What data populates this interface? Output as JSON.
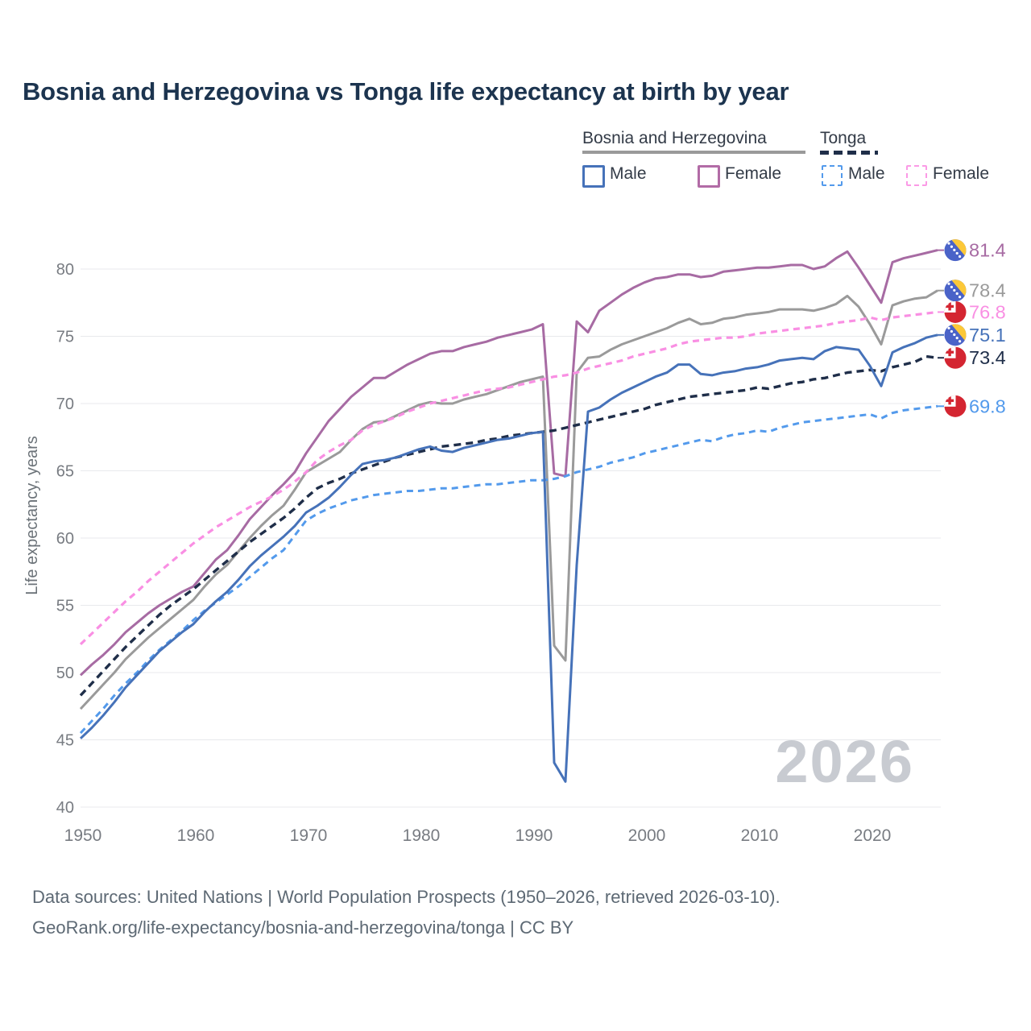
{
  "title": "Bosnia and Herzegovina vs Tonga life expectancy at birth by year",
  "watermark": "2026",
  "footer": {
    "line1": "Data sources: United Nations | World Population Prospects (1950–2026, retrieved 2026-03-10).",
    "line2": "GeoRank.org/life-expectancy/bosnia-and-herzegovina/tonga | CC BY"
  },
  "legend": {
    "groups": [
      {
        "label": "Bosnia and Herzegovina",
        "line_style": "solid",
        "line_color": "#9a9a9a",
        "items": [
          {
            "label": "Male",
            "color": "#4672b9"
          },
          {
            "label": "Female",
            "color": "#b26ba6"
          }
        ]
      },
      {
        "label": "Tonga",
        "line_style": "dashed",
        "line_color": "#1f2e49",
        "items": [
          {
            "label": "Male",
            "color": "#539aec"
          },
          {
            "label": "Female",
            "color": "#fb9ae6"
          }
        ]
      }
    ]
  },
  "chart_data": {
    "type": "line",
    "title": "Bosnia and Herzegovina vs Tonga life expectancy at birth by year",
    "xlabel": "",
    "ylabel": "Life expectancy, years",
    "x_start": 1950,
    "x_step": 1,
    "x_end": 2026,
    "xlim": [
      1950,
      2026
    ],
    "ylim": [
      40,
      82
    ],
    "x_ticks": [
      1950,
      1960,
      1970,
      1980,
      1990,
      2000,
      2010,
      2020
    ],
    "y_ticks": [
      40,
      45,
      50,
      55,
      60,
      65,
      70,
      75,
      80
    ],
    "grid": "horizontal",
    "legend_position": "top-right",
    "tick_color": "#787c82",
    "grid_color": "#e8e9ec",
    "series": [
      {
        "id": "bosnia-all",
        "name": "Bosnia and Herzegovina — All",
        "style": "solid",
        "color": "#9a9a9a",
        "width": 3,
        "flag": "bosnia",
        "end_label": "78.4",
        "values": [
          47.3,
          48.2,
          49.1,
          50.0,
          51.0,
          51.8,
          52.6,
          53.3,
          54.0,
          54.7,
          55.4,
          56.4,
          57.3,
          58.0,
          59.0,
          60.0,
          60.9,
          61.7,
          62.4,
          63.6,
          64.9,
          65.4,
          65.9,
          66.4,
          67.3,
          68.1,
          68.6,
          68.7,
          69.1,
          69.5,
          69.9,
          70.1,
          70.0,
          70.0,
          70.3,
          70.5,
          70.7,
          71.0,
          71.3,
          71.6,
          71.8,
          72.0,
          52.0,
          50.9,
          72.3,
          73.4,
          73.5,
          74.0,
          74.4,
          74.7,
          75.0,
          75.3,
          75.6,
          76.0,
          76.3,
          75.9,
          76.0,
          76.3,
          76.4,
          76.6,
          76.7,
          76.8,
          77.0,
          77.0,
          77.0,
          76.9,
          77.1,
          77.4,
          78.0,
          77.2,
          75.9,
          74.4,
          77.3,
          77.6,
          77.8,
          77.9,
          78.4
        ]
      },
      {
        "id": "bosnia-female",
        "name": "Bosnia and Herzegovina — Female",
        "style": "solid",
        "color": "#a76ba3",
        "width": 3,
        "flag": "bosnia",
        "end_label": "81.4",
        "values": [
          49.8,
          50.6,
          51.3,
          52.1,
          53.0,
          53.7,
          54.4,
          55.0,
          55.5,
          56.0,
          56.4,
          57.4,
          58.4,
          59.1,
          60.2,
          61.4,
          62.3,
          63.2,
          64.0,
          64.9,
          66.3,
          67.5,
          68.7,
          69.6,
          70.5,
          71.2,
          71.9,
          71.9,
          72.4,
          72.9,
          73.3,
          73.7,
          73.9,
          73.9,
          74.2,
          74.4,
          74.6,
          74.9,
          75.1,
          75.3,
          75.5,
          75.9,
          64.8,
          64.6,
          76.1,
          75.3,
          76.9,
          77.5,
          78.1,
          78.6,
          79.0,
          79.3,
          79.4,
          79.6,
          79.6,
          79.4,
          79.5,
          79.8,
          79.9,
          80.0,
          80.1,
          80.1,
          80.2,
          80.3,
          80.3,
          80.0,
          80.2,
          80.8,
          81.3,
          80.1,
          78.8,
          77.5,
          80.5,
          80.8,
          81.0,
          81.2,
          81.4
        ]
      },
      {
        "id": "tonga-female",
        "name": "Tonga — Female",
        "style": "dashed",
        "color": "#f98fe3",
        "width": 3.2,
        "dash": "8 6",
        "flag": "tonga",
        "end_label": "76.8",
        "values": [
          52.1,
          52.9,
          53.7,
          54.5,
          55.3,
          56.0,
          56.8,
          57.5,
          58.2,
          58.9,
          59.6,
          60.2,
          60.8,
          61.3,
          61.8,
          62.3,
          62.7,
          63.1,
          63.6,
          64.2,
          64.9,
          65.8,
          66.4,
          66.9,
          67.3,
          68.0,
          68.4,
          68.7,
          69.0,
          69.4,
          69.7,
          70.0,
          70.2,
          70.4,
          70.6,
          70.8,
          71.0,
          71.1,
          71.2,
          71.4,
          71.6,
          71.8,
          72.0,
          72.1,
          72.3,
          72.6,
          72.8,
          73.0,
          73.2,
          73.5,
          73.7,
          73.9,
          74.1,
          74.4,
          74.6,
          74.7,
          74.8,
          74.9,
          74.9,
          75.0,
          75.2,
          75.3,
          75.4,
          75.5,
          75.6,
          75.7,
          75.8,
          76.0,
          76.1,
          76.2,
          76.4,
          76.2,
          76.4,
          76.5,
          76.6,
          76.7,
          76.8
        ]
      },
      {
        "id": "tonga-all",
        "name": "Tonga — All",
        "style": "dashed",
        "color": "#1f2e49",
        "width": 3.4,
        "dash": "9 6",
        "flag": "tonga",
        "end_label": "73.4",
        "values": [
          48.3,
          49.2,
          50.1,
          51.0,
          51.9,
          52.7,
          53.5,
          54.3,
          55.0,
          55.6,
          56.2,
          56.9,
          57.6,
          58.3,
          59.0,
          59.7,
          60.3,
          60.9,
          61.5,
          62.2,
          63.0,
          63.7,
          64.1,
          64.4,
          64.8,
          65.1,
          65.4,
          65.7,
          66.0,
          66.2,
          66.4,
          66.6,
          66.8,
          66.9,
          67.0,
          67.1,
          67.3,
          67.4,
          67.6,
          67.7,
          67.8,
          67.9,
          68.0,
          68.2,
          68.4,
          68.6,
          68.8,
          69.0,
          69.2,
          69.4,
          69.6,
          69.9,
          70.1,
          70.3,
          70.5,
          70.6,
          70.7,
          70.8,
          70.9,
          71.0,
          71.2,
          71.1,
          71.3,
          71.5,
          71.6,
          71.8,
          71.9,
          72.1,
          72.3,
          72.4,
          72.5,
          72.4,
          72.7,
          72.9,
          73.1,
          73.5,
          73.4
        ]
      },
      {
        "id": "tonga-male",
        "name": "Tonga — Male",
        "style": "dashed",
        "color": "#539aec",
        "width": 3,
        "dash": "8 6",
        "flag": "tonga",
        "end_label": "69.8",
        "values": [
          45.5,
          46.4,
          47.3,
          48.3,
          49.2,
          50.0,
          50.9,
          51.7,
          52.4,
          53.1,
          53.9,
          54.6,
          55.2,
          55.8,
          56.4,
          57.1,
          57.8,
          58.5,
          59.1,
          60.2,
          61.3,
          61.8,
          62.2,
          62.5,
          62.8,
          63.0,
          63.2,
          63.3,
          63.4,
          63.5,
          63.5,
          63.6,
          63.7,
          63.7,
          63.8,
          63.9,
          64.0,
          64.0,
          64.1,
          64.2,
          64.3,
          64.3,
          64.4,
          64.6,
          64.9,
          65.1,
          65.3,
          65.6,
          65.8,
          66.0,
          66.3,
          66.5,
          66.7,
          66.9,
          67.1,
          67.3,
          67.2,
          67.5,
          67.7,
          67.8,
          68.0,
          67.9,
          68.2,
          68.4,
          68.6,
          68.7,
          68.8,
          68.9,
          69.0,
          69.1,
          69.2,
          68.9,
          69.3,
          69.5,
          69.6,
          69.7,
          69.8
        ]
      },
      {
        "id": "bosnia-male",
        "name": "Bosnia and Herzegovina — Male",
        "style": "solid",
        "color": "#4672b9",
        "width": 3,
        "flag": "bosnia",
        "end_label": "75.1",
        "values": [
          45.1,
          45.9,
          46.8,
          47.8,
          48.9,
          49.8,
          50.7,
          51.6,
          52.3,
          53.0,
          53.6,
          54.5,
          55.3,
          56.0,
          56.9,
          57.9,
          58.7,
          59.4,
          60.1,
          60.9,
          61.9,
          62.4,
          63.0,
          63.8,
          64.7,
          65.5,
          65.7,
          65.8,
          66.0,
          66.3,
          66.6,
          66.8,
          66.5,
          66.4,
          66.7,
          66.9,
          67.1,
          67.3,
          67.4,
          67.6,
          67.8,
          67.9,
          43.3,
          41.9,
          58.0,
          69.4,
          69.7,
          70.3,
          70.8,
          71.2,
          71.6,
          72.0,
          72.3,
          72.9,
          72.9,
          72.2,
          72.1,
          72.3,
          72.4,
          72.6,
          72.7,
          72.9,
          73.2,
          73.3,
          73.4,
          73.3,
          73.9,
          74.2,
          74.1,
          74.0,
          72.8,
          71.3,
          73.8,
          74.2,
          74.5,
          74.9,
          75.1
        ]
      }
    ],
    "flag_colors": {
      "bosnia_blue": "#4a63c8",
      "bosnia_yellow": "#fcc838",
      "tonga_red": "#d42531",
      "tonga_white": "#ffffff"
    }
  }
}
